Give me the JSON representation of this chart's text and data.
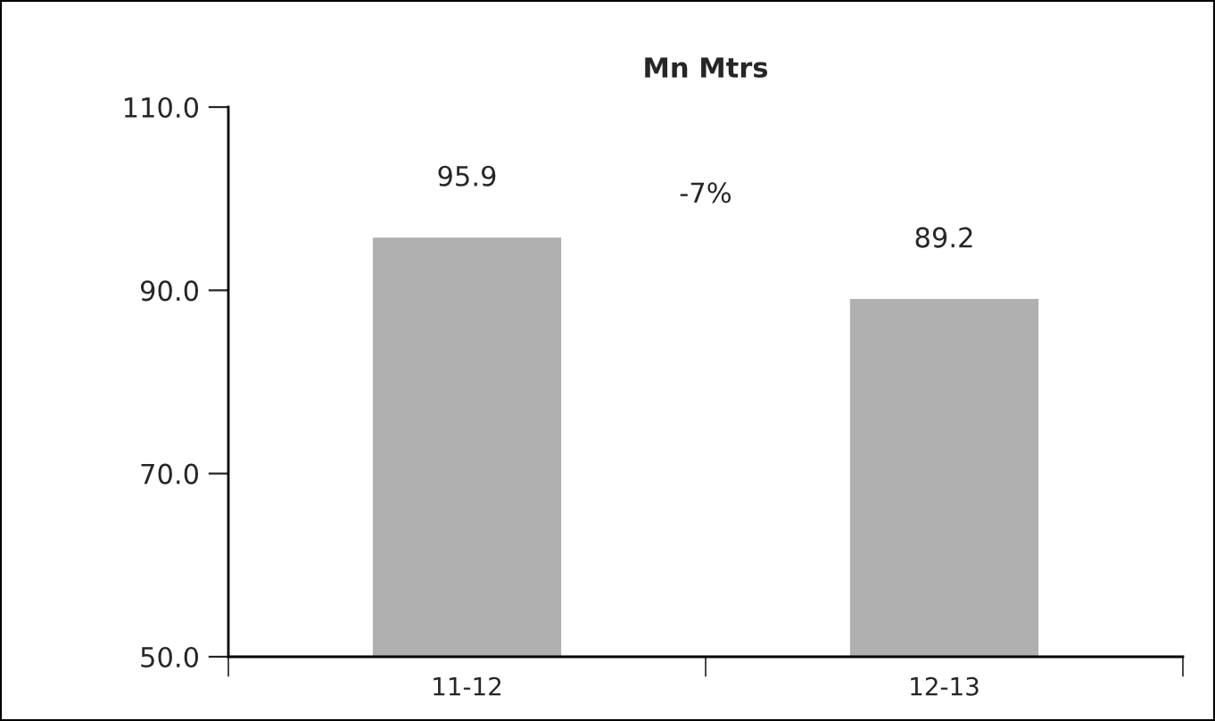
{
  "chart_data": {
    "type": "bar",
    "title": "Mn Mtrs",
    "categories": [
      "11-12",
      "12-13"
    ],
    "values": [
      95.9,
      89.2
    ],
    "color": "#b0b0b0",
    "ylim": [
      50,
      110
    ],
    "yticks": [
      {
        "value": 50,
        "label": "50.0"
      },
      {
        "value": 70,
        "label": "70.0"
      },
      {
        "value": 90,
        "label": "90.0"
      },
      {
        "value": 110,
        "label": "110.0"
      }
    ],
    "data_labels": true,
    "grid": false,
    "legend": false,
    "annotations": [
      "-7%"
    ]
  }
}
